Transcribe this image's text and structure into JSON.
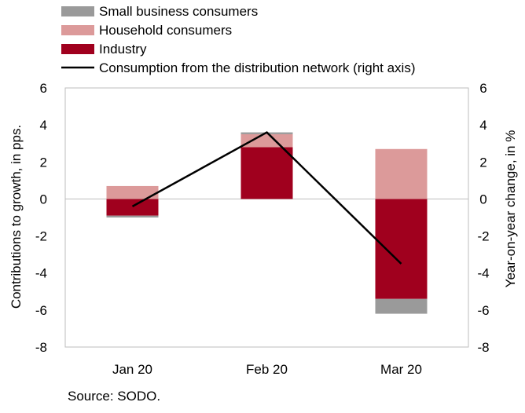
{
  "chart_data": {
    "type": "bar",
    "categories": [
      "Jan 20",
      "Feb 20",
      "Mar 20"
    ],
    "series": [
      {
        "name": "Small business consumers",
        "kind": "bar",
        "axis": "left",
        "color": "#9a9a9a",
        "values": [
          -0.1,
          0.1,
          -0.8
        ]
      },
      {
        "name": "Household consumers",
        "kind": "bar",
        "axis": "left",
        "color": "#dc9a9a",
        "values": [
          0.7,
          0.7,
          2.7
        ]
      },
      {
        "name": "Industry",
        "kind": "bar",
        "axis": "left",
        "color": "#a0001e",
        "values": [
          -0.9,
          2.8,
          -5.4
        ]
      },
      {
        "name": "Consumption from the distribution network (right axis)",
        "kind": "line",
        "axis": "right",
        "color": "#000000",
        "values": [
          -0.4,
          3.6,
          -3.5
        ]
      }
    ],
    "ylabel": "Contributions to growth, in pps.",
    "y2label": "Year-on-year change, in %",
    "ylim": [
      -8,
      6
    ],
    "y2lim": [
      -8,
      6
    ],
    "yticks": [
      "6",
      "4",
      "2",
      "0",
      "-2",
      "-4",
      "-6",
      "-8"
    ],
    "y2ticks": [
      "6",
      "4",
      "2",
      "0",
      "-2",
      "-4",
      "-6",
      "-8"
    ],
    "legend_position": "top",
    "grid": false,
    "source": "Source: SODO."
  }
}
